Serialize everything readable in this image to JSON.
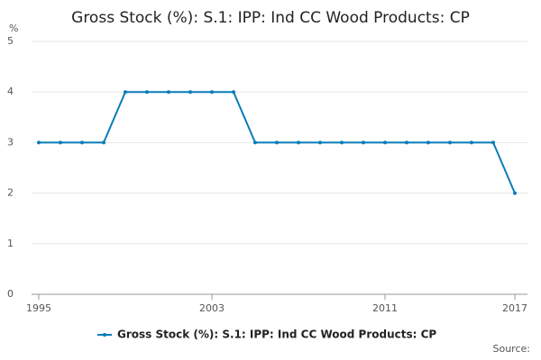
{
  "chart_data": {
    "type": "line",
    "title": "Gross Stock (%): S.1: IPP: Ind CC Wood Products: CP",
    "y_label": "%",
    "x": [
      1995,
      1996,
      1997,
      1998,
      1999,
      2000,
      2001,
      2002,
      2003,
      2004,
      2005,
      2006,
      2007,
      2008,
      2009,
      2010,
      2011,
      2012,
      2013,
      2014,
      2015,
      2016,
      2017
    ],
    "series": [
      {
        "name": "Gross Stock (%): S.1: IPP: Ind CC Wood Products: CP",
        "color": "#0a7cb8",
        "values": [
          3,
          3,
          3,
          3,
          4,
          4,
          4,
          4,
          4,
          4,
          3,
          3,
          3,
          3,
          3,
          3,
          3,
          3,
          3,
          3,
          3,
          3,
          2
        ]
      }
    ],
    "xlim": [
      1995,
      2017
    ],
    "xticks": [
      1995,
      2003,
      2011,
      2017
    ],
    "ylim": [
      0,
      5
    ],
    "yticks": [
      0,
      1,
      2,
      3,
      4,
      5
    ],
    "grid": true,
    "source": "Source:"
  }
}
